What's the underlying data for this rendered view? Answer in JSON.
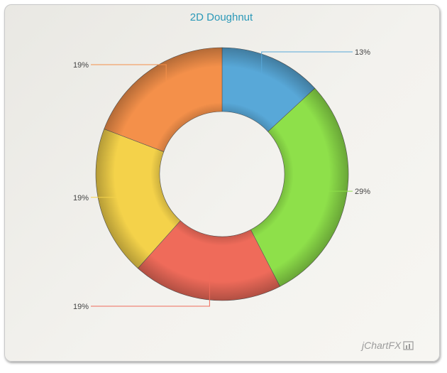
{
  "chart_data": {
    "type": "doughnut",
    "title": "2D Doughnut",
    "slices": [
      {
        "label": "13%",
        "value": 13,
        "color": "#58a8d8"
      },
      {
        "label": "29%",
        "value": 29,
        "color": "#8ee04a"
      },
      {
        "label": "19%",
        "value": 19,
        "color": "#ef6b5a"
      },
      {
        "label": "19%",
        "value": 19,
        "color": "#f4d24a"
      },
      {
        "label": "19%",
        "value": 19,
        "color": "#f4904a"
      }
    ]
  },
  "branding": {
    "text": "jChartFX"
  }
}
